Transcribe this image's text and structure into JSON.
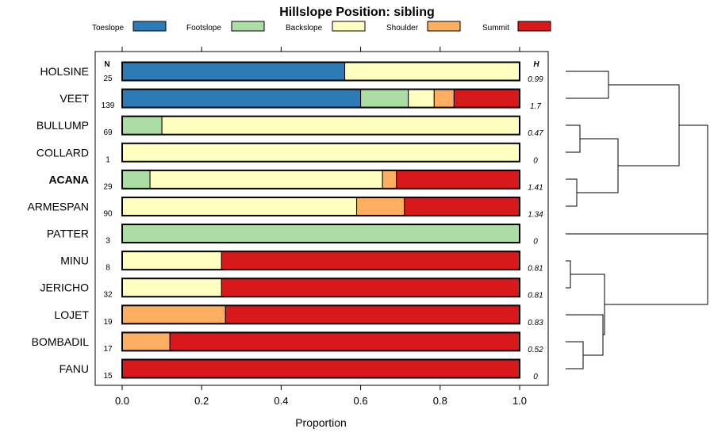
{
  "chart_data": {
    "type": "bar",
    "orientation": "horizontal",
    "stacked": true,
    "title": "Hillslope Position: sibling",
    "xlabel": "Proportion",
    "ylabel": "",
    "xlim": [
      0,
      1
    ],
    "xticks": [
      "0.0",
      "0.2",
      "0.4",
      "0.6",
      "0.8",
      "1.0"
    ],
    "n_header": "N",
    "h_header": "H",
    "legend": [
      {
        "name": "Toeslope",
        "color": "#2c7bb6"
      },
      {
        "name": "Footslope",
        "color": "#abdda4"
      },
      {
        "name": "Backslope",
        "color": "#ffffbf"
      },
      {
        "name": "Shoulder",
        "color": "#fdae61"
      },
      {
        "name": "Summit",
        "color": "#d7191c"
      }
    ],
    "categories": [
      "HOLSINE",
      "VEET",
      "BULLUMP",
      "COLLARD",
      "ACANA",
      "ARMESPAN",
      "PATTER",
      "MINU",
      "JERICHO",
      "LOJET",
      "BOMBADIL",
      "FANU"
    ],
    "highlight": "ACANA",
    "series": [
      {
        "name": "Toeslope",
        "values": [
          0.56,
          0.6,
          0,
          0,
          0,
          0,
          0,
          0,
          0,
          0,
          0,
          0
        ]
      },
      {
        "name": "Footslope",
        "values": [
          0,
          0.12,
          0.1,
          0,
          0.07,
          0,
          1,
          0,
          0,
          0,
          0,
          0
        ]
      },
      {
        "name": "Backslope",
        "values": [
          0.44,
          0.065,
          0.9,
          1,
          0.585,
          0.59,
          0,
          0.25,
          0.25,
          0,
          0,
          0
        ]
      },
      {
        "name": "Shoulder",
        "values": [
          0,
          0.05,
          0,
          0,
          0.035,
          0.12,
          0,
          0,
          0,
          0.26,
          0.12,
          0
        ]
      },
      {
        "name": "Summit",
        "values": [
          0,
          0.165,
          0,
          0,
          0.31,
          0.29,
          0,
          0.75,
          0.75,
          0.74,
          0.88,
          1
        ]
      }
    ],
    "n": [
      "25",
      "139",
      "69",
      "1",
      "29",
      "90",
      "3",
      "8",
      "32",
      "19",
      "17",
      "15"
    ],
    "h": [
      "0.99",
      "1.7",
      "0.47",
      "0",
      "1.41",
      "1.34",
      "0",
      "0.81",
      "0.81",
      "0.83",
      "0.52",
      "0"
    ],
    "dendrogram": {
      "note": "cluster tree of rows; merge heights in relative distance units",
      "merges": [
        {
          "a": "MINU",
          "b": "JERICHO",
          "height": 0.03
        },
        {
          "a": "BOMBADIL",
          "b": "FANU",
          "height": 0.13
        },
        {
          "a": "ACANA",
          "b": "ARMESPAN",
          "height": 0.07
        },
        {
          "a": "BULLUMP",
          "b": "COLLARD",
          "height": 0.1
        },
        {
          "a": "HOLSINE",
          "b": "VEET",
          "height": 0.3
        },
        {
          "a": "LOJET",
          "b": "(BOMBADIL,FANU)",
          "height": 0.25
        },
        {
          "a": "(MINU,JERICHO)",
          "b": "(LOJET,BOMBADIL,FANU)",
          "height": 0.27
        },
        {
          "a": "(BULLUMP,COLLARD)",
          "b": "(ACANA,ARMESPAN)",
          "height": 0.37
        },
        {
          "a": "(HOLSINE,VEET)",
          "b": "(BULLUMP,COLLARD,ACANA,ARMESPAN)",
          "height": 0.79
        },
        {
          "a": "PATTER",
          "b": "(MINU,JERICHO,LOJET,BOMBADIL,FANU)",
          "height": 1.0
        },
        {
          "a": "(HOLSINE..ARMESPAN)",
          "b": "(PATTER..FANU)",
          "height": 1.0
        }
      ]
    }
  }
}
